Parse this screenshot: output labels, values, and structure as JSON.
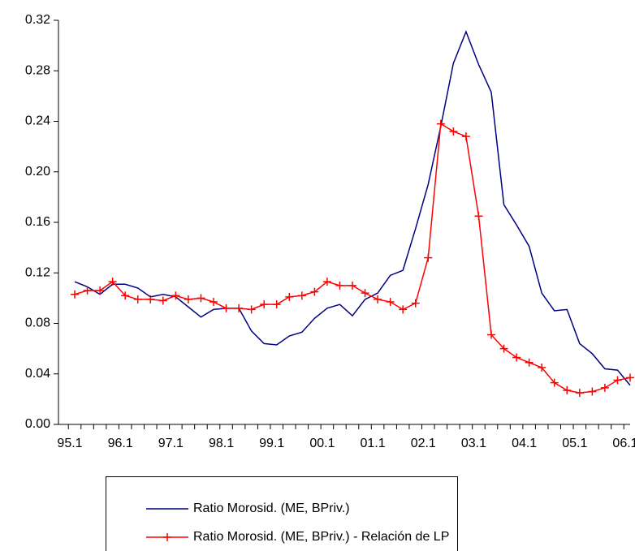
{
  "chart_data": {
    "type": "line",
    "categories": [
      "95.1",
      null,
      null,
      null,
      "96.1",
      null,
      null,
      null,
      "97.1",
      null,
      null,
      null,
      "98.1",
      null,
      null,
      null,
      "99.1",
      null,
      null,
      null,
      "00.1",
      null,
      null,
      null,
      "01.1",
      null,
      null,
      null,
      "02.1",
      null,
      null,
      null,
      "03.1",
      null,
      null,
      null,
      "04.1",
      null,
      null,
      null,
      "05.1",
      null,
      null,
      null,
      "06.1"
    ],
    "series": [
      {
        "name": "Ratio Morosid. (ME, BPriv.)",
        "color": "#000080",
        "marker": false,
        "values": [
          0.113,
          0.109,
          0.103,
          0.111,
          0.111,
          0.108,
          0.101,
          0.103,
          0.101,
          0.093,
          0.085,
          0.091,
          0.092,
          0.092,
          0.074,
          0.064,
          0.063,
          0.07,
          0.073,
          0.084,
          0.092,
          0.095,
          0.086,
          0.099,
          0.104,
          0.118,
          0.122,
          0.155,
          0.19,
          0.236,
          0.286,
          0.311,
          0.285,
          0.263,
          0.174,
          0.158,
          0.141,
          0.104,
          0.09,
          0.091,
          0.064,
          0.056,
          0.044,
          0.043,
          0.031
        ]
      },
      {
        "name": "Ratio Morosid. (ME, BPriv.) - Relación de LP",
        "color": "#ff0000",
        "marker": true,
        "values": [
          0.103,
          0.106,
          0.106,
          0.113,
          0.102,
          0.099,
          0.099,
          0.098,
          0.102,
          0.099,
          0.1,
          0.097,
          0.092,
          0.092,
          0.091,
          0.095,
          0.095,
          0.101,
          0.102,
          0.105,
          0.113,
          0.11,
          0.11,
          0.104,
          0.099,
          0.097,
          0.091,
          0.096,
          0.132,
          0.238,
          0.232,
          0.228,
          0.165,
          0.071,
          0.06,
          0.053,
          0.049,
          0.045,
          0.033,
          0.027,
          0.025,
          0.026,
          0.029,
          0.035,
          0.037
        ]
      }
    ],
    "ylim": [
      0,
      0.32
    ],
    "yticks": [
      {
        "value": 0,
        "label": "0.00"
      },
      {
        "value": 0.04,
        "label": "0.04"
      },
      {
        "value": 0.08,
        "label": "0.08"
      },
      {
        "value": 0.12,
        "label": "0.12"
      },
      {
        "value": 0.16,
        "label": "0.16"
      },
      {
        "value": 0.2,
        "label": "0.20"
      },
      {
        "value": 0.24,
        "label": "0.24"
      },
      {
        "value": 0.28,
        "label": "0.28"
      },
      {
        "value": 0.32,
        "label": "0.32"
      }
    ],
    "grid": false
  }
}
